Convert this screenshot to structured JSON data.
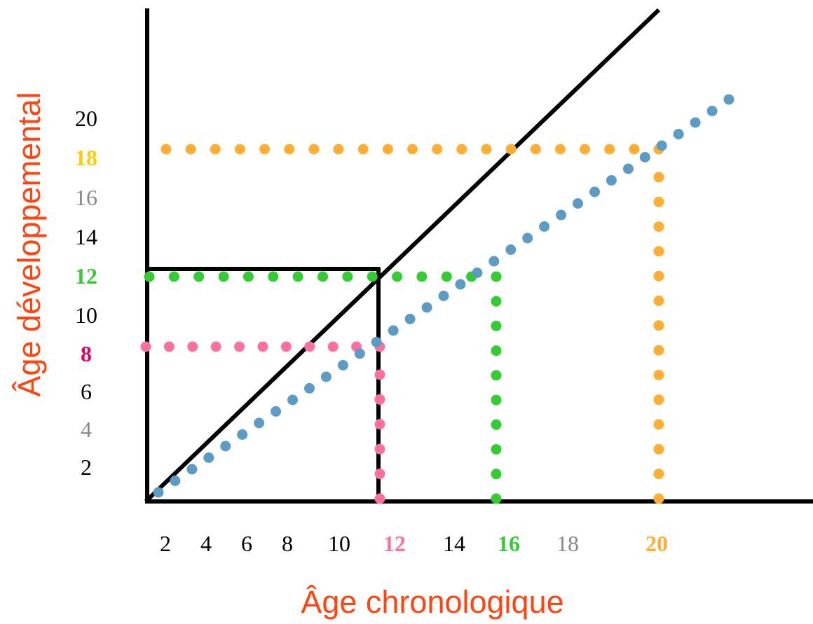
{
  "x_axis": {
    "title": "Âge chronologique",
    "ticks": [
      {
        "label": "2",
        "color": "#000000",
        "bold": false
      },
      {
        "label": "4",
        "color": "#000000",
        "bold": false
      },
      {
        "label": "6",
        "color": "#000000",
        "bold": false
      },
      {
        "label": "8",
        "color": "#000000",
        "bold": false
      },
      {
        "label": "10",
        "color": "#000000",
        "bold": false
      },
      {
        "label": "12",
        "color": "#ff6fa0",
        "bold": true
      },
      {
        "label": "14",
        "color": "#000000",
        "bold": false
      },
      {
        "label": "16",
        "color": "#33cc33",
        "bold": true
      },
      {
        "label": "18",
        "color": "#888888",
        "bold": false
      },
      {
        "label": "20",
        "color": "#ffad33",
        "bold": true
      }
    ]
  },
  "y_axis": {
    "title": "Âge développemental",
    "ticks": [
      {
        "label": "2",
        "color": "#000000",
        "bold": false
      },
      {
        "label": "4",
        "color": "#888888",
        "bold": false
      },
      {
        "label": "6",
        "color": "#000000",
        "bold": false
      },
      {
        "label": "8",
        "color": "#e8005a",
        "bold": true
      },
      {
        "label": "10",
        "color": "#000000",
        "bold": false
      },
      {
        "label": "12",
        "color": "#33cc33",
        "bold": true
      },
      {
        "label": "14",
        "color": "#000000",
        "bold": false
      },
      {
        "label": "16",
        "color": "#888888",
        "bold": false
      },
      {
        "label": "18",
        "color": "#ffcc00",
        "bold": true
      },
      {
        "label": "20",
        "color": "#000000",
        "bold": false
      }
    ]
  },
  "colors": {
    "axis_title": "#ff4411",
    "axes": "#000000",
    "diagonal": "#000000",
    "delayed_curve": "#5b9bc4",
    "guide_8_to_12": "#ff6fa0",
    "guide_12_to_16": "#33cc33",
    "guide_18_to_20": "#ffad33"
  },
  "guides": [
    {
      "name": "guide-pink",
      "dev_age": 8,
      "chrono_age": 12,
      "color_key": "guide_8_to_12"
    },
    {
      "name": "guide-green",
      "dev_age": 12,
      "chrono_age": 16,
      "color_key": "guide_12_to_16"
    },
    {
      "name": "guide-orange",
      "dev_age": 18,
      "chrono_age": 20,
      "color_key": "guide_18_to_20"
    }
  ]
}
